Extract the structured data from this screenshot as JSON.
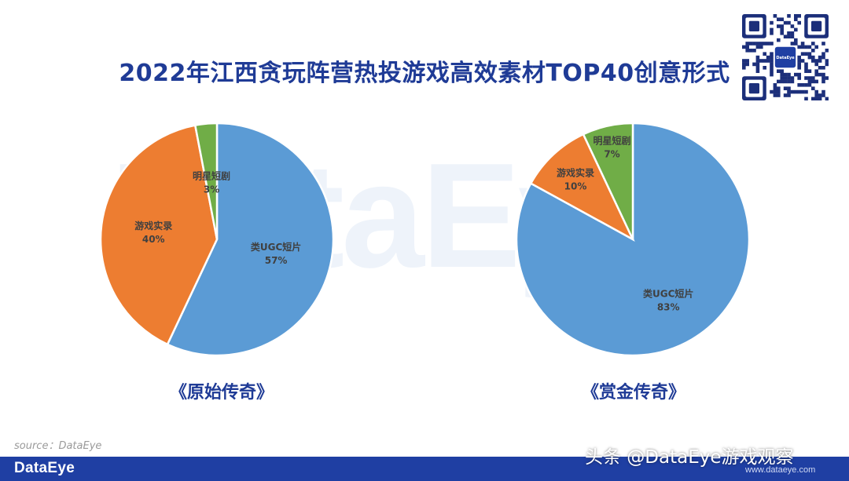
{
  "title": "2022年江西贪玩阵营热投游戏高效素材TOP40创意形式",
  "watermark": "DataEye",
  "source": "source：DataEye",
  "footer": {
    "logo": "DataEye",
    "mark": "头条 @DataEye游戏观察",
    "url": "www.dataeye.com"
  },
  "qr": {
    "badge": "DataEye"
  },
  "colors": {
    "title": "#1f3b96",
    "footer": "#1f3fa3",
    "ugc": "#5b9bd5",
    "game": "#ed7d31",
    "star": "#70ad47"
  },
  "chart_data": [
    {
      "type": "pie",
      "title": "《原始传奇》",
      "slices": [
        {
          "label": "类UGC短片",
          "value": 57,
          "display": "57%",
          "color": "#5b9bd5"
        },
        {
          "label": "游戏实录",
          "value": 40,
          "display": "40%",
          "color": "#ed7d31"
        },
        {
          "label": "明星短剧",
          "value": 3,
          "display": "3%",
          "color": "#70ad47"
        }
      ]
    },
    {
      "type": "pie",
      "title": "《赏金传奇》",
      "slices": [
        {
          "label": "类UGC短片",
          "value": 83,
          "display": "83%",
          "color": "#5b9bd5"
        },
        {
          "label": "游戏实录",
          "value": 10,
          "display": "10%",
          "color": "#ed7d31"
        },
        {
          "label": "明星短剧",
          "value": 7,
          "display": "7%",
          "color": "#70ad47"
        }
      ]
    }
  ]
}
